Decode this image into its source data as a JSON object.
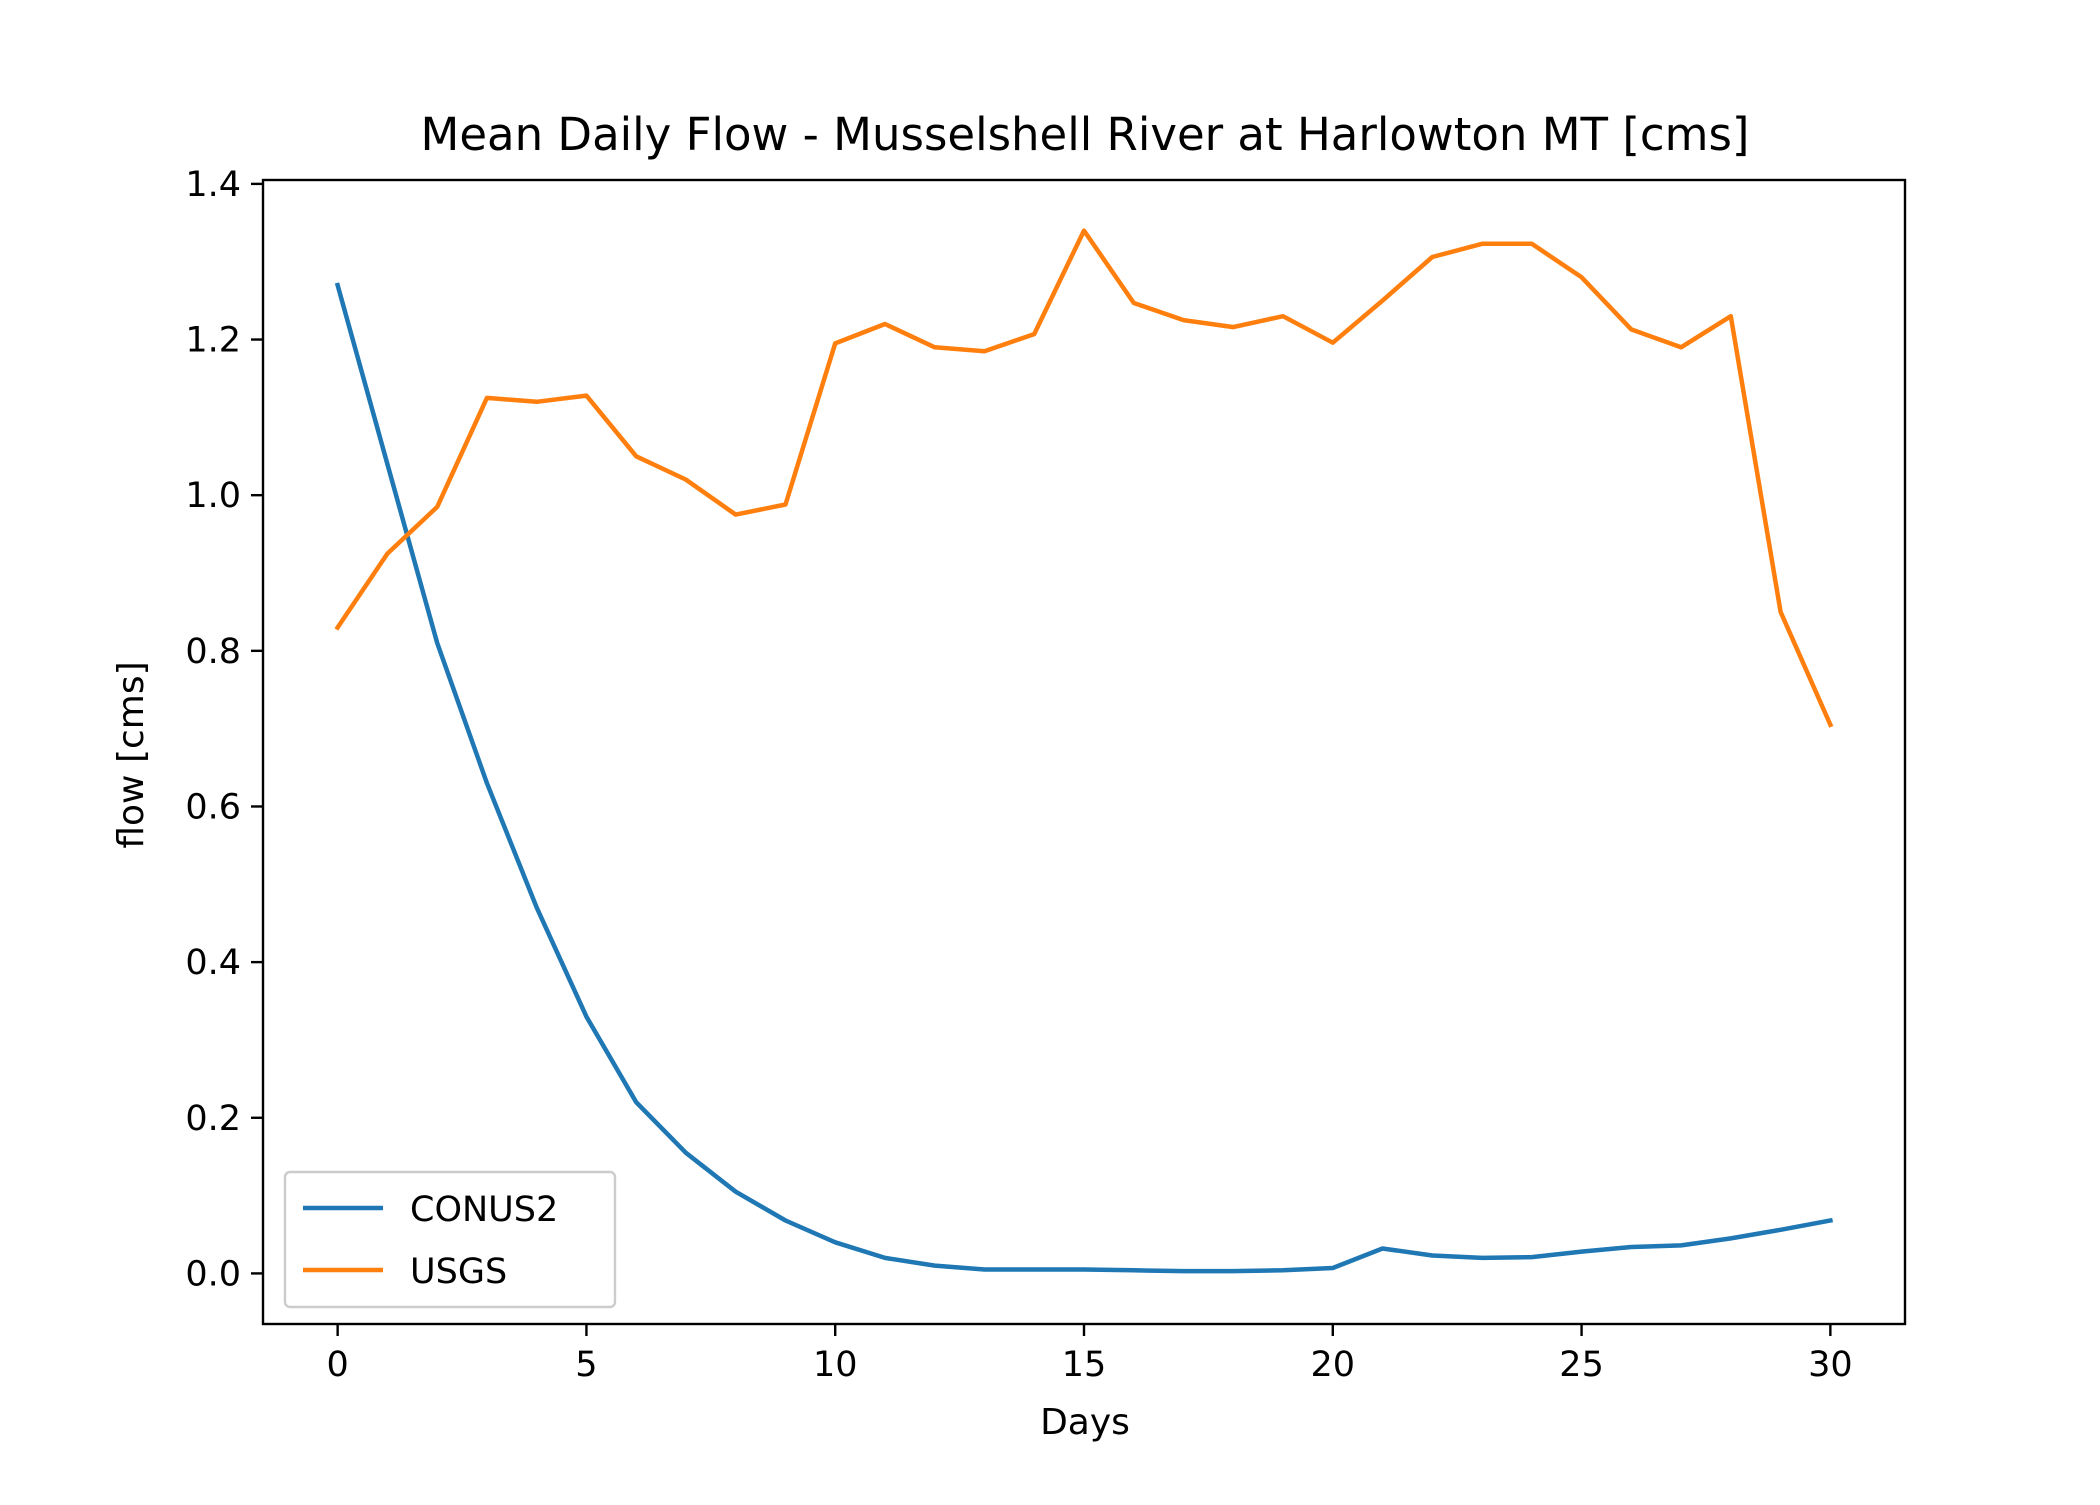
{
  "chart_data": {
    "type": "line",
    "title": "Mean Daily Flow - Musselshell River at Harlowton MT [cms]",
    "xlabel": "Days",
    "ylabel": "flow [cms]",
    "xlim": [
      -1.5,
      31.5
    ],
    "ylim": [
      -0.065,
      1.405
    ],
    "xticks": [
      0,
      5,
      10,
      15,
      20,
      25,
      30
    ],
    "xtick_labels": [
      "0",
      "5",
      "10",
      "15",
      "20",
      "25",
      "30"
    ],
    "yticks": [
      0.0,
      0.2,
      0.4,
      0.6,
      0.8,
      1.0,
      1.2,
      1.4
    ],
    "ytick_labels": [
      "0.0",
      "0.2",
      "0.4",
      "0.6",
      "0.8",
      "1.0",
      "1.2",
      "1.4"
    ],
    "grid": false,
    "legend_position": "lower-left",
    "x": [
      0,
      1,
      2,
      3,
      4,
      5,
      6,
      7,
      8,
      9,
      10,
      11,
      12,
      13,
      14,
      15,
      16,
      17,
      18,
      19,
      20,
      21,
      22,
      23,
      24,
      25,
      26,
      27,
      28,
      29,
      30
    ],
    "series": [
      {
        "name": "CONUS2",
        "color": "#1f77b4",
        "values": [
          1.27,
          1.04,
          0.81,
          0.63,
          0.47,
          0.33,
          0.22,
          0.155,
          0.105,
          0.068,
          0.04,
          0.02,
          0.01,
          0.005,
          0.005,
          0.005,
          0.004,
          0.003,
          0.003,
          0.004,
          0.007,
          0.032,
          0.023,
          0.02,
          0.021,
          0.028,
          0.034,
          0.036,
          0.045,
          0.056,
          0.068
        ]
      },
      {
        "name": "USGS",
        "color": "#ff7f0e",
        "values": [
          0.83,
          0.925,
          0.985,
          1.125,
          1.12,
          1.128,
          1.05,
          1.02,
          0.975,
          0.988,
          1.195,
          1.22,
          1.19,
          1.185,
          1.207,
          1.34,
          1.247,
          1.225,
          1.216,
          1.23,
          1.196,
          1.25,
          1.306,
          1.323,
          1.323,
          1.28,
          1.213,
          1.19,
          1.23,
          0.85,
          0.705
        ]
      }
    ]
  }
}
